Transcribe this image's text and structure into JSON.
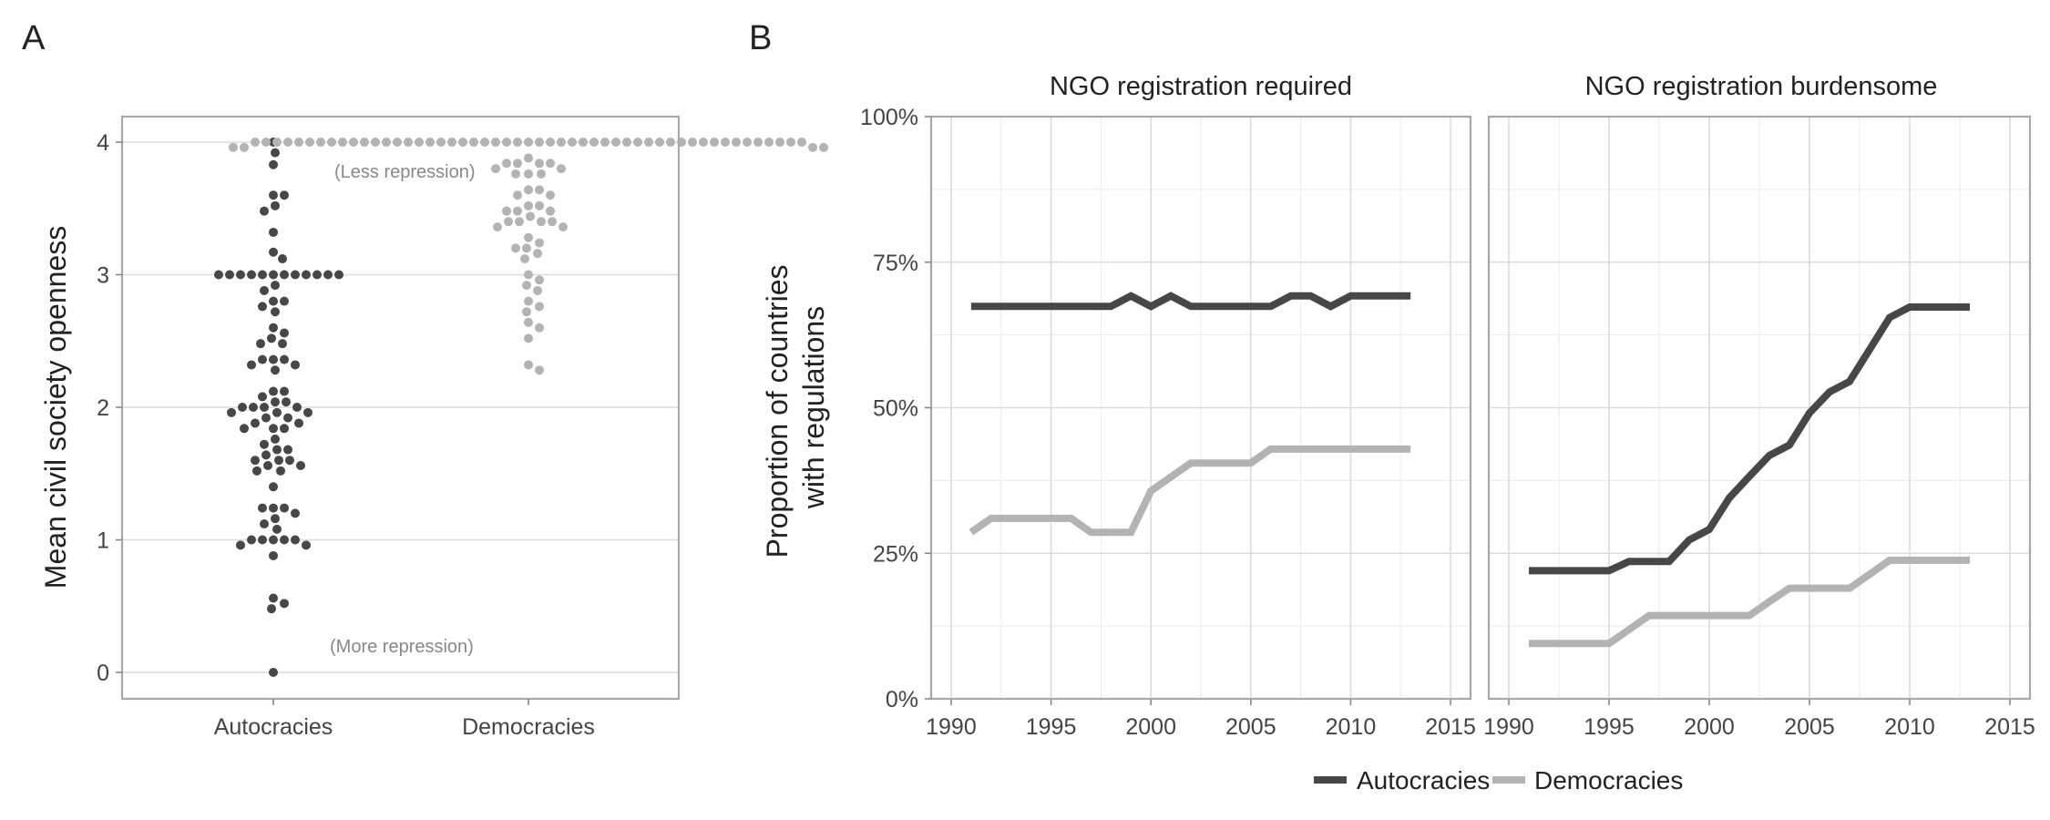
{
  "chart_data": [
    {
      "panel": "A",
      "type": "scatter",
      "title": "",
      "xlabel": "",
      "ylabel": "Mean civil society openness",
      "ylim": [
        -0.2,
        4.2
      ],
      "yticks": [
        "0",
        "1",
        "2",
        "3",
        "4"
      ],
      "categories": [
        "Autocracies",
        "Democracies"
      ],
      "annotations": {
        "top": "(Less repression)",
        "bottom": "(More repression)"
      },
      "grid": true,
      "series": [
        {
          "category": "Autocracies",
          "color": "#474747",
          "values": [
            4.0,
            3.92,
            3.83,
            3.6,
            3.6,
            3.52,
            3.48,
            3.32,
            3.17,
            3.12,
            3.0,
            3.0,
            3.0,
            3.0,
            3.0,
            3.0,
            3.0,
            3.0,
            3.0,
            3.0,
            3.0,
            3.0,
            2.92,
            2.88,
            2.8,
            2.8,
            2.76,
            2.72,
            2.6,
            2.56,
            2.52,
            2.48,
            2.48,
            2.36,
            2.36,
            2.36,
            2.32,
            2.32,
            2.28,
            2.12,
            2.12,
            2.08,
            2.04,
            2.04,
            2.0,
            2.0,
            2.0,
            2.0,
            1.96,
            1.96,
            1.96,
            1.92,
            1.92,
            1.88,
            1.88,
            1.84,
            1.84,
            1.84,
            1.76,
            1.72,
            1.68,
            1.68,
            1.64,
            1.6,
            1.6,
            1.6,
            1.56,
            1.56,
            1.52,
            1.52,
            1.4,
            1.24,
            1.24,
            1.24,
            1.2,
            1.16,
            1.12,
            1.08,
            1.0,
            1.0,
            1.0,
            1.0,
            1.0,
            0.96,
            0.96,
            0.88,
            0.56,
            0.52,
            0.48,
            0.0
          ]
        },
        {
          "category": "Democracies",
          "color": "#b3b3b3",
          "values": [
            4.0,
            4.0,
            4.0,
            4.0,
            4.0,
            4.0,
            4.0,
            4.0,
            4.0,
            4.0,
            4.0,
            4.0,
            4.0,
            4.0,
            4.0,
            4.0,
            4.0,
            4.0,
            4.0,
            4.0,
            4.0,
            4.0,
            4.0,
            4.0,
            4.0,
            4.0,
            4.0,
            4.0,
            4.0,
            4.0,
            4.0,
            4.0,
            4.0,
            4.0,
            4.0,
            4.0,
            4.0,
            4.0,
            4.0,
            4.0,
            4.0,
            4.0,
            4.0,
            4.0,
            4.0,
            4.0,
            4.0,
            4.0,
            4.0,
            4.0,
            4.0,
            3.96,
            3.96,
            3.96,
            3.96,
            3.88,
            3.84,
            3.84,
            3.84,
            3.84,
            3.8,
            3.8,
            3.76,
            3.76,
            3.76,
            3.64,
            3.64,
            3.6,
            3.6,
            3.52,
            3.52,
            3.48,
            3.48,
            3.48,
            3.44,
            3.4,
            3.4,
            3.4,
            3.4,
            3.36,
            3.36,
            3.28,
            3.24,
            3.2,
            3.2,
            3.16,
            3.12,
            3.0,
            2.96,
            2.92,
            2.88,
            2.8,
            2.76,
            2.72,
            2.64,
            2.6,
            2.52,
            2.32,
            2.28
          ]
        }
      ]
    },
    {
      "panel": "B",
      "type": "line",
      "ylabel": "Proportion of countries\nwith regulations",
      "ylim": [
        0,
        1
      ],
      "yticks": [
        "0%",
        "25%",
        "50%",
        "75%",
        "100%"
      ],
      "xlim": [
        1989,
        2016
      ],
      "xticks": [
        "1990",
        "1995",
        "2000",
        "2005",
        "2010",
        "2015"
      ],
      "grid": true,
      "legend_position": "bottom",
      "legend": [
        {
          "name": "Autocracies",
          "color": "#474747"
        },
        {
          "name": "Democracies",
          "color": "#b3b3b3"
        }
      ],
      "x": [
        1991,
        1992,
        1993,
        1994,
        1995,
        1996,
        1997,
        1998,
        1999,
        2000,
        2001,
        2002,
        2003,
        2004,
        2005,
        2006,
        2007,
        2008,
        2009,
        2010,
        2011,
        2012,
        2013
      ],
      "facets": [
        {
          "title": "NGO registration required",
          "series": [
            {
              "name": "Autocracies",
              "values": [
                0.674,
                0.674,
                0.674,
                0.674,
                0.674,
                0.674,
                0.674,
                0.674,
                0.692,
                0.674,
                0.692,
                0.674,
                0.674,
                0.674,
                0.674,
                0.674,
                0.692,
                0.692,
                0.674,
                0.692,
                0.692,
                0.692,
                0.692
              ]
            },
            {
              "name": "Democracies",
              "values": [
                0.286,
                0.31,
                0.31,
                0.31,
                0.31,
                0.31,
                0.286,
                0.286,
                0.286,
                0.357,
                0.381,
                0.405,
                0.405,
                0.405,
                0.405,
                0.429,
                0.429,
                0.429,
                0.429,
                0.429,
                0.429,
                0.429,
                0.429
              ]
            }
          ]
        },
        {
          "title": "NGO registration burdensome",
          "series": [
            {
              "name": "Autocracies",
              "values": [
                0.22,
                0.22,
                0.22,
                0.22,
                0.22,
                0.236,
                0.236,
                0.236,
                0.273,
                0.291,
                0.345,
                0.382,
                0.418,
                0.436,
                0.491,
                0.527,
                0.545,
                0.6,
                0.655,
                0.673,
                0.673,
                0.673,
                0.673
              ]
            },
            {
              "name": "Democracies",
              "values": [
                0.095,
                0.095,
                0.095,
                0.095,
                0.095,
                0.119,
                0.143,
                0.143,
                0.143,
                0.143,
                0.143,
                0.143,
                0.167,
                0.19,
                0.19,
                0.19,
                0.19,
                0.214,
                0.238,
                0.238,
                0.238,
                0.238,
                0.238
              ]
            }
          ]
        }
      ]
    }
  ]
}
